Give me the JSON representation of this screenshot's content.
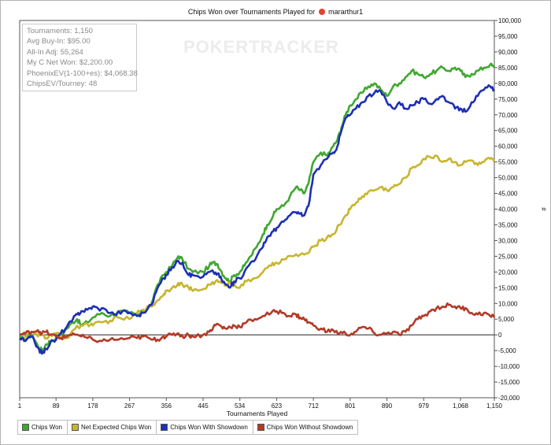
{
  "title": "Chips Won over Tournaments Played for",
  "username": "mararthur1",
  "user_icon": "poker-icon",
  "watermark": "POKERTRACKER",
  "stats": [
    "Tournaments: 1,150",
    "Avg Buy-In: $95.00",
    "All-In Adj: 55,264",
    "My C Net Won: $2,200.00",
    "PhoenixEV(1-100+es): $4,068.38",
    "ChipsEV/Tourney: 48"
  ],
  "chart_data": {
    "type": "line",
    "title": "Chips Won over Tournaments Played for mararthur1",
    "xlabel": "Tournaments Played",
    "ylabel": "#",
    "xlim": [
      1,
      1150
    ],
    "ylim": [
      -20000,
      100000
    ],
    "x_ticks": [
      "1",
      "89",
      "178",
      "267",
      "356",
      "445",
      "534",
      "623",
      "712",
      "801",
      "890",
      "979",
      "1,068",
      "1,150"
    ],
    "y_ticks": [
      "-20,000",
      "-15,000",
      "-10,000",
      "-5,000",
      "0",
      "5,000",
      "10,000",
      "15,000",
      "20,000",
      "25,000",
      "30,000",
      "35,000",
      "40,000",
      "45,000",
      "50,000",
      "55,000",
      "60,000",
      "65,000",
      "70,000",
      "75,000",
      "80,000",
      "85,000",
      "90,000",
      "95,000",
      "100,000"
    ],
    "grid": false,
    "legend_position": "bottom",
    "series": [
      {
        "name": "Chips Won",
        "color": "#3fa72f",
        "x": [
          1,
          15,
          30,
          45,
          55,
          65,
          75,
          89,
          100,
          115,
          130,
          140,
          150,
          165,
          178,
          200,
          220,
          240,
          267,
          285,
          300,
          320,
          335,
          350,
          356,
          370,
          385,
          395,
          410,
          420,
          445,
          460,
          470,
          480,
          490,
          500,
          510,
          520,
          534,
          545,
          560,
          575,
          590,
          600,
          615,
          623,
          640,
          655,
          670,
          680,
          690,
          700,
          712,
          730,
          745,
          760,
          770,
          780,
          790,
          801,
          815,
          830,
          845,
          860,
          875,
          890,
          905,
          920,
          935,
          950,
          965,
          979,
          995,
          1010,
          1025,
          1040,
          1055,
          1068,
          1080,
          1095,
          1110,
          1125,
          1140,
          1150
        ],
        "y": [
          -1000,
          -1500,
          0,
          -3500,
          -5000,
          -3000,
          -2000,
          -1000,
          0,
          2000,
          4000,
          5000,
          3000,
          4000,
          5500,
          7000,
          6000,
          7500,
          7000,
          6000,
          7500,
          10000,
          16000,
          19000,
          20000,
          22000,
          25000,
          24000,
          21000,
          20000,
          20000,
          22000,
          23000,
          22500,
          20000,
          18000,
          17000,
          19000,
          20000,
          22000,
          25000,
          28000,
          32000,
          35000,
          38000,
          40000,
          41000,
          44000,
          47000,
          46000,
          45000,
          48000,
          55000,
          58000,
          57000,
          60000,
          62000,
          66000,
          70000,
          73000,
          75000,
          77000,
          79000,
          80000,
          78000,
          76000,
          79000,
          80000,
          82000,
          84000,
          83000,
          82000,
          83000,
          84000,
          85000,
          84000,
          85000,
          84000,
          82000,
          83000,
          84000,
          85000,
          86000,
          85000
        ]
      },
      {
        "name": "Net Expected Chips Won",
        "color": "#c8b52e",
        "x": [
          1,
          15,
          30,
          45,
          55,
          65,
          75,
          89,
          100,
          115,
          130,
          150,
          165,
          178,
          200,
          220,
          240,
          267,
          285,
          300,
          320,
          335,
          350,
          356,
          370,
          385,
          395,
          410,
          420,
          445,
          460,
          475,
          490,
          500,
          510,
          520,
          534,
          550,
          570,
          590,
          610,
          623,
          640,
          660,
          680,
          700,
          712,
          730,
          745,
          760,
          775,
          790,
          801,
          815,
          830,
          845,
          860,
          875,
          890,
          905,
          920,
          935,
          950,
          965,
          979,
          995,
          1010,
          1025,
          1040,
          1055,
          1068,
          1080,
          1095,
          1110,
          1125,
          1140,
          1150
        ],
        "y": [
          -1000,
          -500,
          1000,
          -500,
          0,
          -1000,
          0,
          500,
          -500,
          -1000,
          1500,
          3000,
          3500,
          3000,
          4000,
          4500,
          5500,
          5000,
          7000,
          8000,
          9000,
          11000,
          13000,
          14000,
          15000,
          16500,
          16000,
          15000,
          14000,
          14500,
          16000,
          17000,
          16500,
          16000,
          16500,
          16000,
          15000,
          17000,
          18000,
          20000,
          22000,
          23000,
          24000,
          25000,
          25500,
          26000,
          28000,
          30000,
          31000,
          32000,
          35000,
          38000,
          40000,
          42000,
          44000,
          45500,
          46000,
          47000,
          46000,
          47000,
          48000,
          50000,
          53000,
          54000,
          56000,
          56500,
          57000,
          55000,
          56000,
          55000,
          54000,
          55000,
          55500,
          54000,
          55000,
          56000,
          55000
        ]
      },
      {
        "name": "Chips Won With Showdown",
        "color": "#1d2fb4",
        "x": [
          1,
          15,
          30,
          45,
          55,
          65,
          75,
          89,
          100,
          115,
          130,
          140,
          150,
          165,
          178,
          190,
          210,
          230,
          250,
          267,
          285,
          300,
          320,
          335,
          350,
          356,
          370,
          385,
          395,
          410,
          420,
          445,
          460,
          470,
          480,
          490,
          500,
          510,
          520,
          534,
          545,
          560,
          575,
          590,
          600,
          615,
          623,
          640,
          655,
          670,
          680,
          690,
          700,
          712,
          730,
          745,
          760,
          770,
          780,
          790,
          801,
          815,
          830,
          845,
          860,
          875,
          890,
          905,
          920,
          935,
          950,
          965,
          979,
          995,
          1010,
          1025,
          1040,
          1055,
          1068,
          1080,
          1095,
          1110,
          1125,
          1140,
          1150
        ],
        "y": [
          -1000,
          -2000,
          -500,
          -4000,
          -6000,
          -4500,
          -2500,
          -1500,
          500,
          2500,
          5000,
          6500,
          7500,
          8000,
          9000,
          8500,
          8000,
          6500,
          7500,
          7000,
          6000,
          7000,
          9500,
          15000,
          18000,
          19000,
          21500,
          23500,
          23000,
          19000,
          19000,
          18500,
          20000,
          20000,
          19500,
          17500,
          16000,
          15000,
          17000,
          18000,
          20000,
          23000,
          25000,
          28000,
          31000,
          33000,
          34000,
          36000,
          38000,
          39000,
          38500,
          38000,
          41000,
          51000,
          54000,
          56000,
          58000,
          60000,
          65000,
          69000,
          70000,
          72000,
          74000,
          76000,
          77000,
          77500,
          74000,
          72000,
          74000,
          72000,
          73000,
          74000,
          75000,
          73500,
          75000,
          76000,
          74000,
          72000,
          72000,
          71000,
          74000,
          76000,
          78000,
          79000,
          78000
        ]
      },
      {
        "name": "Chips Won Without Showdown",
        "color": "#b23a27",
        "x": [
          1,
          15,
          30,
          45,
          55,
          65,
          75,
          89,
          100,
          115,
          130,
          150,
          165,
          178,
          200,
          220,
          240,
          267,
          285,
          300,
          320,
          335,
          350,
          356,
          370,
          385,
          395,
          410,
          420,
          445,
          460,
          470,
          480,
          490,
          500,
          510,
          520,
          534,
          550,
          570,
          590,
          610,
          623,
          640,
          655,
          670,
          680,
          690,
          700,
          712,
          730,
          745,
          760,
          775,
          790,
          801,
          815,
          830,
          845,
          860,
          875,
          890,
          905,
          920,
          935,
          950,
          965,
          979,
          995,
          1010,
          1025,
          1040,
          1055,
          1068,
          1080,
          1095,
          1110,
          1125,
          1140,
          1150
        ],
        "y": [
          0,
          500,
          1000,
          1500,
          500,
          1000,
          0,
          -500,
          -1000,
          -500,
          500,
          -500,
          -1000,
          -1500,
          -2000,
          -1500,
          -1500,
          -1000,
          -1000,
          -500,
          -1500,
          -1500,
          -500,
          -500,
          0,
          500,
          -500,
          0,
          -500,
          0,
          1000,
          2500,
          3500,
          2500,
          2000,
          2500,
          3000,
          2500,
          4000,
          5000,
          6000,
          7000,
          7500,
          7000,
          6000,
          6500,
          5500,
          5000,
          4000,
          3000,
          2000,
          1000,
          1500,
          500,
          500,
          0,
          1000,
          2500,
          2000,
          500,
          0,
          500,
          1000,
          0,
          1000,
          3000,
          5000,
          6000,
          7500,
          8500,
          9000,
          9500,
          9000,
          8500,
          8500,
          7000,
          6500,
          7000,
          6000,
          5500
        ]
      }
    ]
  }
}
